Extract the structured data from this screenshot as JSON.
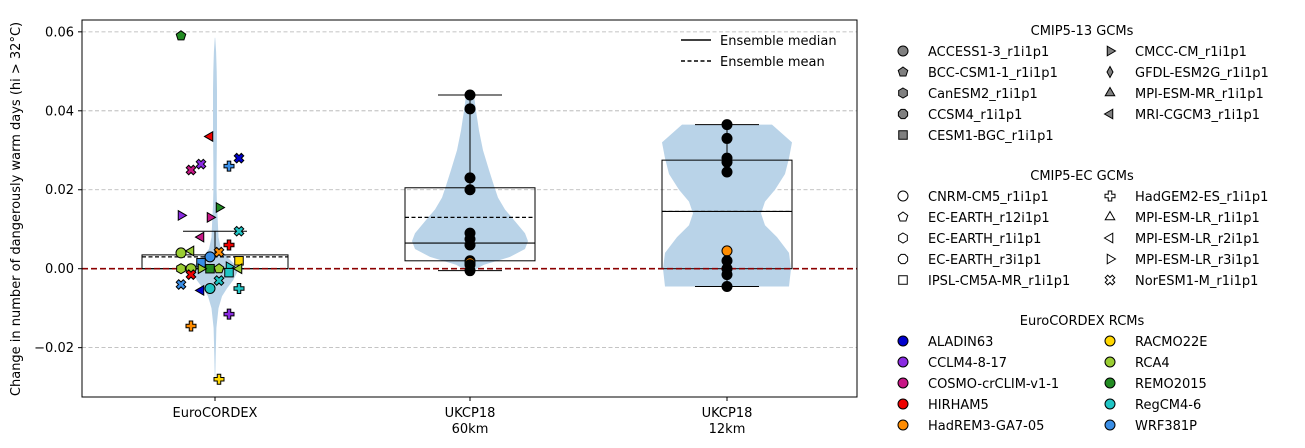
{
  "chart_data": {
    "type": "violin-box-strip",
    "ylabel": "Change in number of dangerously warm days (hi > 32°C)",
    "ylim": [
      -0.0325,
      0.063
    ],
    "yticks": [
      -0.02,
      0.0,
      0.02,
      0.04,
      0.06
    ],
    "ytick_labels": [
      "−0.02",
      "0.00",
      "0.02",
      "0.04",
      "0.06"
    ],
    "grid": "horizontal-dashed",
    "zero_line_color": "#8b0000",
    "violin_color": "#b9d3e8",
    "groups": [
      {
        "label_lines": [
          "EuroCORDEX"
        ],
        "box": {
          "q1": 0.0,
          "median": 0.0,
          "mean": 0.003,
          "q3": 0.0035,
          "whisker_low": 0.0,
          "whisker_high": 0.0095
        },
        "violin": [
          [
            -0.028,
            0.2
          ],
          [
            -0.022,
            0.7
          ],
          [
            -0.015,
            1.4
          ],
          [
            -0.01,
            3.5
          ],
          [
            -0.007,
            7
          ],
          [
            -0.005,
            12
          ],
          [
            -0.003,
            18
          ],
          [
            -0.001,
            22
          ],
          [
            0.0,
            22.5
          ],
          [
            0.001,
            20
          ],
          [
            0.003,
            12
          ],
          [
            0.005,
            6
          ],
          [
            0.008,
            3.5
          ],
          [
            0.012,
            2.8
          ],
          [
            0.016,
            2
          ],
          [
            0.02,
            1.6
          ],
          [
            0.025,
            1.6
          ],
          [
            0.03,
            1.8
          ],
          [
            0.035,
            2
          ],
          [
            0.04,
            2
          ],
          [
            0.045,
            2
          ],
          [
            0.05,
            1.7
          ],
          [
            0.055,
            1.1
          ],
          [
            0.0585,
            0.2
          ]
        ],
        "points": [
          {
            "y": 0.059,
            "gcm": "EC-EARTH_r12i1p1",
            "rcm": "REMO2015"
          },
          {
            "y": 0.0335,
            "gcm": "MPI-ESM-LR_r2i1p1",
            "rcm": "HIRHAM5"
          },
          {
            "y": 0.028,
            "gcm": "NorESM1-M_r1i1p1",
            "rcm": "ALADIN63"
          },
          {
            "y": 0.0265,
            "gcm": "NorESM1-M_r1i1p1",
            "rcm": "CCLM4-8-17"
          },
          {
            "y": 0.026,
            "gcm": "HadGEM2-ES_r1i1p1",
            "rcm": "WRF381P"
          },
          {
            "y": 0.025,
            "gcm": "NorESM1-M_r1i1p1",
            "rcm": "COSMO-crCLIM-v1-1"
          },
          {
            "y": 0.0155,
            "gcm": "MPI-ESM-LR_r3i1p1",
            "rcm": "REMO2015"
          },
          {
            "y": 0.0135,
            "gcm": "MPI-ESM-LR_r3i1p1",
            "rcm": "CCLM4-8-17"
          },
          {
            "y": 0.013,
            "gcm": "MPI-ESM-LR_r3i1p1",
            "rcm": "COSMO-crCLIM-v1-1"
          },
          {
            "y": 0.0095,
            "gcm": "NorESM1-M_r1i1p1",
            "rcm": "RegCM4-6"
          },
          {
            "y": 0.008,
            "gcm": "MPI-ESM-LR_r2i1p1",
            "rcm": "COSMO-crCLIM-v1-1"
          },
          {
            "y": 0.006,
            "gcm": "HadGEM2-ES_r1i1p1",
            "rcm": "HIRHAM5"
          },
          {
            "y": 0.0045,
            "gcm": "MPI-ESM-LR_r2i1p1",
            "rcm": "RCA4"
          },
          {
            "y": 0.0042,
            "gcm": "NorESM1-M_r1i1p1",
            "rcm": "HadREM3-GA7-05"
          },
          {
            "y": 0.004,
            "gcm": "CNRM-CM5_r1i1p1",
            "rcm": "RCA4"
          },
          {
            "y": 0.003,
            "gcm": "CNRM-CM5_r1i1p1",
            "rcm": "WRF381P"
          },
          {
            "y": 0.002,
            "gcm": "IPSL-CM5A-MR_r1i1p1",
            "rcm": "RACMO22E"
          },
          {
            "y": 0.0015,
            "gcm": "IPSL-CM5A-MR_r1i1p1",
            "rcm": "WRF381P"
          },
          {
            "y": 0.0005,
            "gcm": "MPI-ESM-LR_r3i1p1",
            "rcm": "RegCM4-6"
          },
          {
            "y": 0.0,
            "gcm": "CNRM-CM5_r1i1p1",
            "rcm": "RCA4"
          },
          {
            "y": 0.0,
            "gcm": "EC-EARTH_r12i1p1",
            "rcm": "RCA4"
          },
          {
            "y": 0.0,
            "gcm": "EC-EARTH_r1i1p1",
            "rcm": "RCA4"
          },
          {
            "y": 0.0,
            "gcm": "IPSL-CM5A-MR_r1i1p1",
            "rcm": "REMO2015"
          },
          {
            "y": 0.0,
            "gcm": "MPI-ESM-LR_r2i1p1",
            "rcm": "RCA4"
          },
          {
            "y": 0.0,
            "gcm": "MPI-ESM-LR_r3i1p1",
            "rcm": "RCA4"
          },
          {
            "y": -0.001,
            "gcm": "IPSL-CM5A-MR_r1i1p1",
            "rcm": "RegCM4-6"
          },
          {
            "y": -0.0015,
            "gcm": "NorESM1-M_r1i1p1",
            "rcm": "HIRHAM5"
          },
          {
            "y": -0.003,
            "gcm": "NorESM1-M_r1i1p1",
            "rcm": "RegCM4-6"
          },
          {
            "y": -0.004,
            "gcm": "NorESM1-M_r1i1p1",
            "rcm": "WRF381P"
          },
          {
            "y": -0.005,
            "gcm": "CNRM-CM5_r1i1p1",
            "rcm": "RegCM4-6"
          },
          {
            "y": -0.005,
            "gcm": "HadGEM2-ES_r1i1p1",
            "rcm": "RegCM4-6"
          },
          {
            "y": -0.0055,
            "gcm": "MPI-ESM-LR_r2i1p1",
            "rcm": "ALADIN63"
          },
          {
            "y": -0.0115,
            "gcm": "HadGEM2-ES_r1i1p1",
            "rcm": "CCLM4-8-17"
          },
          {
            "y": -0.0145,
            "gcm": "HadGEM2-ES_r1i1p1",
            "rcm": "HadREM3-GA7-05"
          },
          {
            "y": -0.028,
            "gcm": "HadGEM2-ES_r1i1p1",
            "rcm": "RACMO22E"
          }
        ]
      },
      {
        "label_lines": [
          "UKCP18",
          "60km"
        ],
        "box": {
          "q1": 0.002,
          "median": 0.0065,
          "mean": 0.013,
          "q3": 0.0205,
          "whisker_low": -0.0005,
          "whisker_high": 0.044
        },
        "violin": [
          [
            -0.0005,
            3
          ],
          [
            0.001,
            14
          ],
          [
            0.003,
            40
          ],
          [
            0.005,
            55
          ],
          [
            0.007,
            58
          ],
          [
            0.009,
            55
          ],
          [
            0.012,
            45
          ],
          [
            0.015,
            35
          ],
          [
            0.018,
            28
          ],
          [
            0.021,
            24
          ],
          [
            0.025,
            19
          ],
          [
            0.03,
            13
          ],
          [
            0.035,
            9
          ],
          [
            0.04,
            6
          ],
          [
            0.044,
            4
          ]
        ],
        "points": [
          {
            "y": 0.044,
            "gcm": "",
            "rcm": ""
          },
          {
            "y": 0.0405,
            "gcm": "",
            "rcm": ""
          },
          {
            "y": 0.023,
            "gcm": "",
            "rcm": ""
          },
          {
            "y": 0.02,
            "gcm": "",
            "rcm": ""
          },
          {
            "y": 0.009,
            "gcm": "",
            "rcm": ""
          },
          {
            "y": 0.0075,
            "gcm": "",
            "rcm": ""
          },
          {
            "y": 0.006,
            "gcm": "",
            "rcm": ""
          },
          {
            "y": 0.002,
            "gcm": "",
            "rcm": ""
          },
          {
            "y": 0.0015,
            "gcm": "",
            "rcm": "HadREM3-GA7-05"
          },
          {
            "y": 0.001,
            "gcm": "",
            "rcm": ""
          },
          {
            "y": -0.0005,
            "gcm": "",
            "rcm": ""
          }
        ]
      },
      {
        "label_lines": [
          "UKCP18",
          "12km"
        ],
        "box": {
          "q1": 0.0,
          "median": 0.0145,
          "mean": 0.0145,
          "q3": 0.0275,
          "whisker_low": -0.0045,
          "whisker_high": 0.0365
        },
        "violin": [
          [
            -0.0045,
            62
          ],
          [
            0.0,
            64
          ],
          [
            0.004,
            62
          ],
          [
            0.008,
            50
          ],
          [
            0.011,
            38
          ],
          [
            0.014,
            34
          ],
          [
            0.017,
            38
          ],
          [
            0.02,
            48
          ],
          [
            0.024,
            58
          ],
          [
            0.028,
            62
          ],
          [
            0.032,
            65
          ],
          [
            0.0365,
            45
          ]
        ],
        "points": [
          {
            "y": 0.0365,
            "gcm": "",
            "rcm": ""
          },
          {
            "y": 0.033,
            "gcm": "",
            "rcm": ""
          },
          {
            "y": 0.028,
            "gcm": "",
            "rcm": ""
          },
          {
            "y": 0.027,
            "gcm": "",
            "rcm": ""
          },
          {
            "y": 0.0245,
            "gcm": "",
            "rcm": ""
          },
          {
            "y": 0.0045,
            "gcm": "",
            "rcm": "HadREM3-GA7-05"
          },
          {
            "y": 0.002,
            "gcm": "",
            "rcm": ""
          },
          {
            "y": 0.0,
            "gcm": "",
            "rcm": ""
          },
          {
            "y": -0.0015,
            "gcm": "",
            "rcm": ""
          },
          {
            "y": -0.0045,
            "gcm": "",
            "rcm": ""
          }
        ]
      }
    ],
    "line_legend": [
      {
        "label": "Ensemble median",
        "style": "solid"
      },
      {
        "label": "Ensemble mean",
        "style": "dashed"
      }
    ],
    "marker_legends": [
      {
        "title": "CMIP5-13 GCMs",
        "fill": "#808080",
        "items": [
          {
            "label": "ACCESS1-3_r1i1p1",
            "marker": "circle"
          },
          {
            "label": "BCC-CSM1-1_r1i1p1",
            "marker": "pentagon"
          },
          {
            "label": "CanESM2_r1i1p1",
            "marker": "hexagon"
          },
          {
            "label": "CCSM4_r1i1p1",
            "marker": "octagon"
          },
          {
            "label": "CESM1-BGC_r1i1p1",
            "marker": "square"
          },
          {
            "label": "CMCC-CM_r1i1p1",
            "marker": "triangle-right"
          },
          {
            "label": "GFDL-ESM2G_r1i1p1",
            "marker": "thin-diamond"
          },
          {
            "label": "MPI-ESM-MR_r1i1p1",
            "marker": "triangle-up"
          },
          {
            "label": "MRI-CGCM3_r1i1p1",
            "marker": "triangle-left"
          }
        ]
      },
      {
        "title": "CMIP5-EC GCMs",
        "fill": "#ffffff",
        "items": [
          {
            "label": "CNRM-CM5_r1i1p1",
            "marker": "circle"
          },
          {
            "label": "EC-EARTH_r12i1p1",
            "marker": "pentagon"
          },
          {
            "label": "EC-EARTH_r1i1p1",
            "marker": "hexagon"
          },
          {
            "label": "EC-EARTH_r3i1p1",
            "marker": "octagon"
          },
          {
            "label": "IPSL-CM5A-MR_r1i1p1",
            "marker": "square"
          },
          {
            "label": "HadGEM2-ES_r1i1p1",
            "marker": "plus"
          },
          {
            "label": "MPI-ESM-LR_r1i1p1",
            "marker": "triangle-up"
          },
          {
            "label": "MPI-ESM-LR_r2i1p1",
            "marker": "triangle-left"
          },
          {
            "label": "MPI-ESM-LR_r3i1p1",
            "marker": "triangle-right"
          },
          {
            "label": "NorESM1-M_r1i1p1",
            "marker": "x"
          }
        ]
      },
      {
        "title": "EuroCORDEX RCMs",
        "items": [
          {
            "label": "ALADIN63",
            "marker": "circle",
            "color": "#0000cd"
          },
          {
            "label": "CCLM4-8-17",
            "marker": "circle",
            "color": "#8a2be2"
          },
          {
            "label": "COSMO-crCLIM-v1-1",
            "marker": "circle",
            "color": "#c71585"
          },
          {
            "label": "HIRHAM5",
            "marker": "circle",
            "color": "#ee0000"
          },
          {
            "label": "HadREM3-GA7-05",
            "marker": "circle",
            "color": "#ff8c00"
          },
          {
            "label": "RACMO22E",
            "marker": "circle",
            "color": "#ffd700"
          },
          {
            "label": "RCA4",
            "marker": "circle",
            "color": "#9acd32"
          },
          {
            "label": "REMO2015",
            "marker": "circle",
            "color": "#228b22"
          },
          {
            "label": "RegCM4-6",
            "marker": "circle",
            "color": "#20c5c5"
          },
          {
            "label": "WRF381P",
            "marker": "circle",
            "color": "#3a8ee6"
          }
        ]
      }
    ]
  }
}
